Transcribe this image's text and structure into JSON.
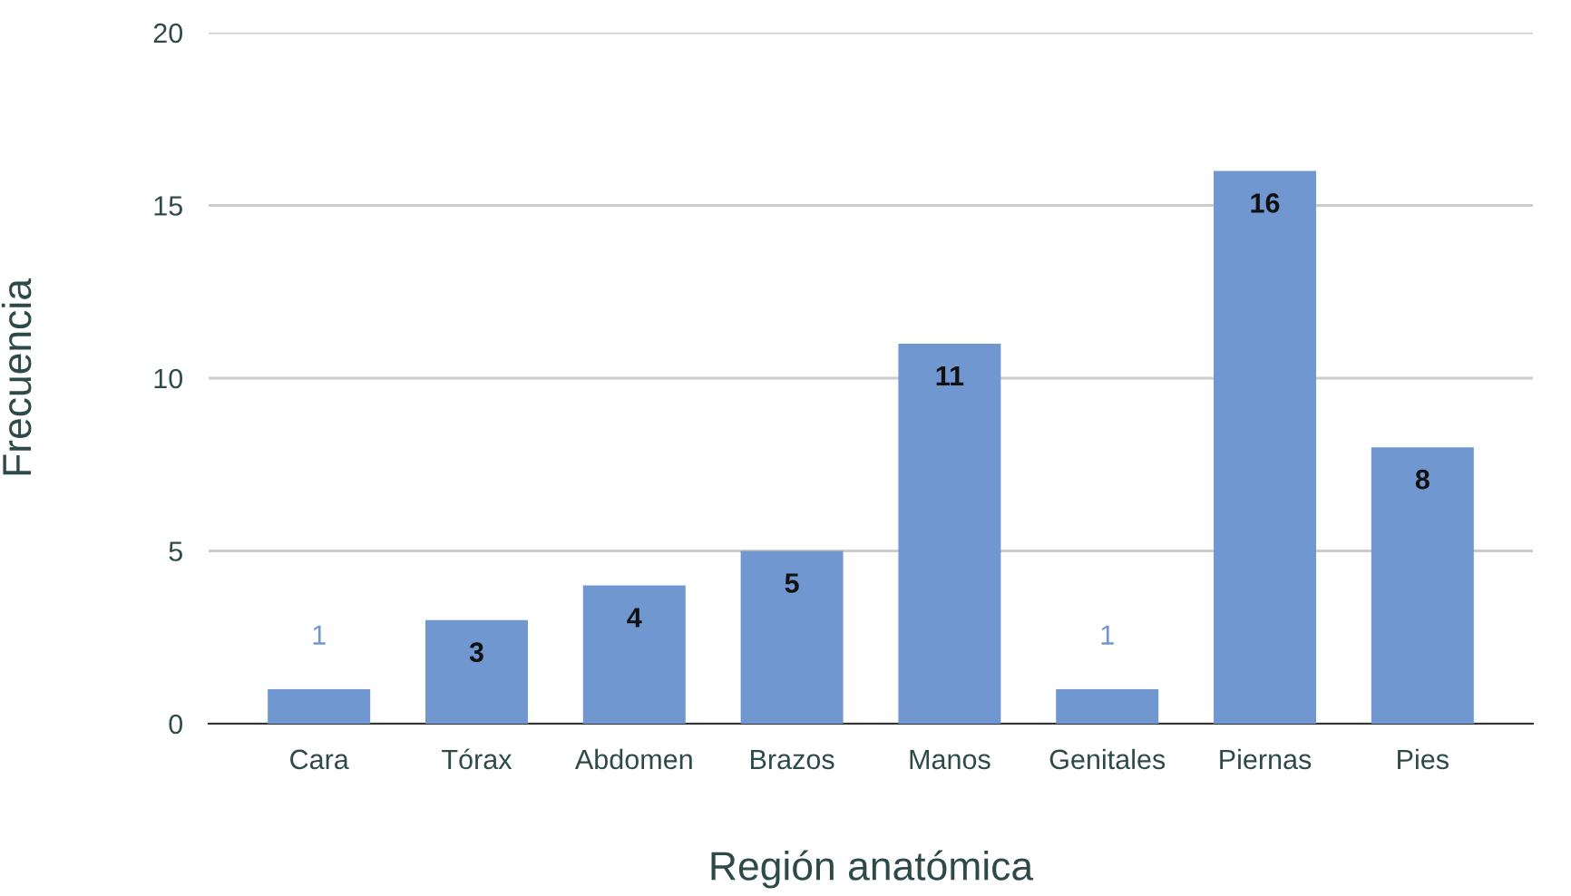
{
  "chart_data": {
    "type": "bar",
    "xlabel": "Región anatómica",
    "ylabel": "Frecuencia",
    "categories": [
      "Cara",
      "Tórax",
      "Abdomen",
      "Brazos",
      "Manos",
      "Genitales",
      "Piernas",
      "Pies"
    ],
    "values": [
      1,
      3,
      4,
      5,
      11,
      1,
      16,
      8
    ],
    "color": "#7097cf",
    "ylim": [
      0,
      20
    ],
    "yticks": [
      0,
      5,
      10,
      15,
      20
    ],
    "grid": "y",
    "data_labels": true,
    "legend": false
  }
}
